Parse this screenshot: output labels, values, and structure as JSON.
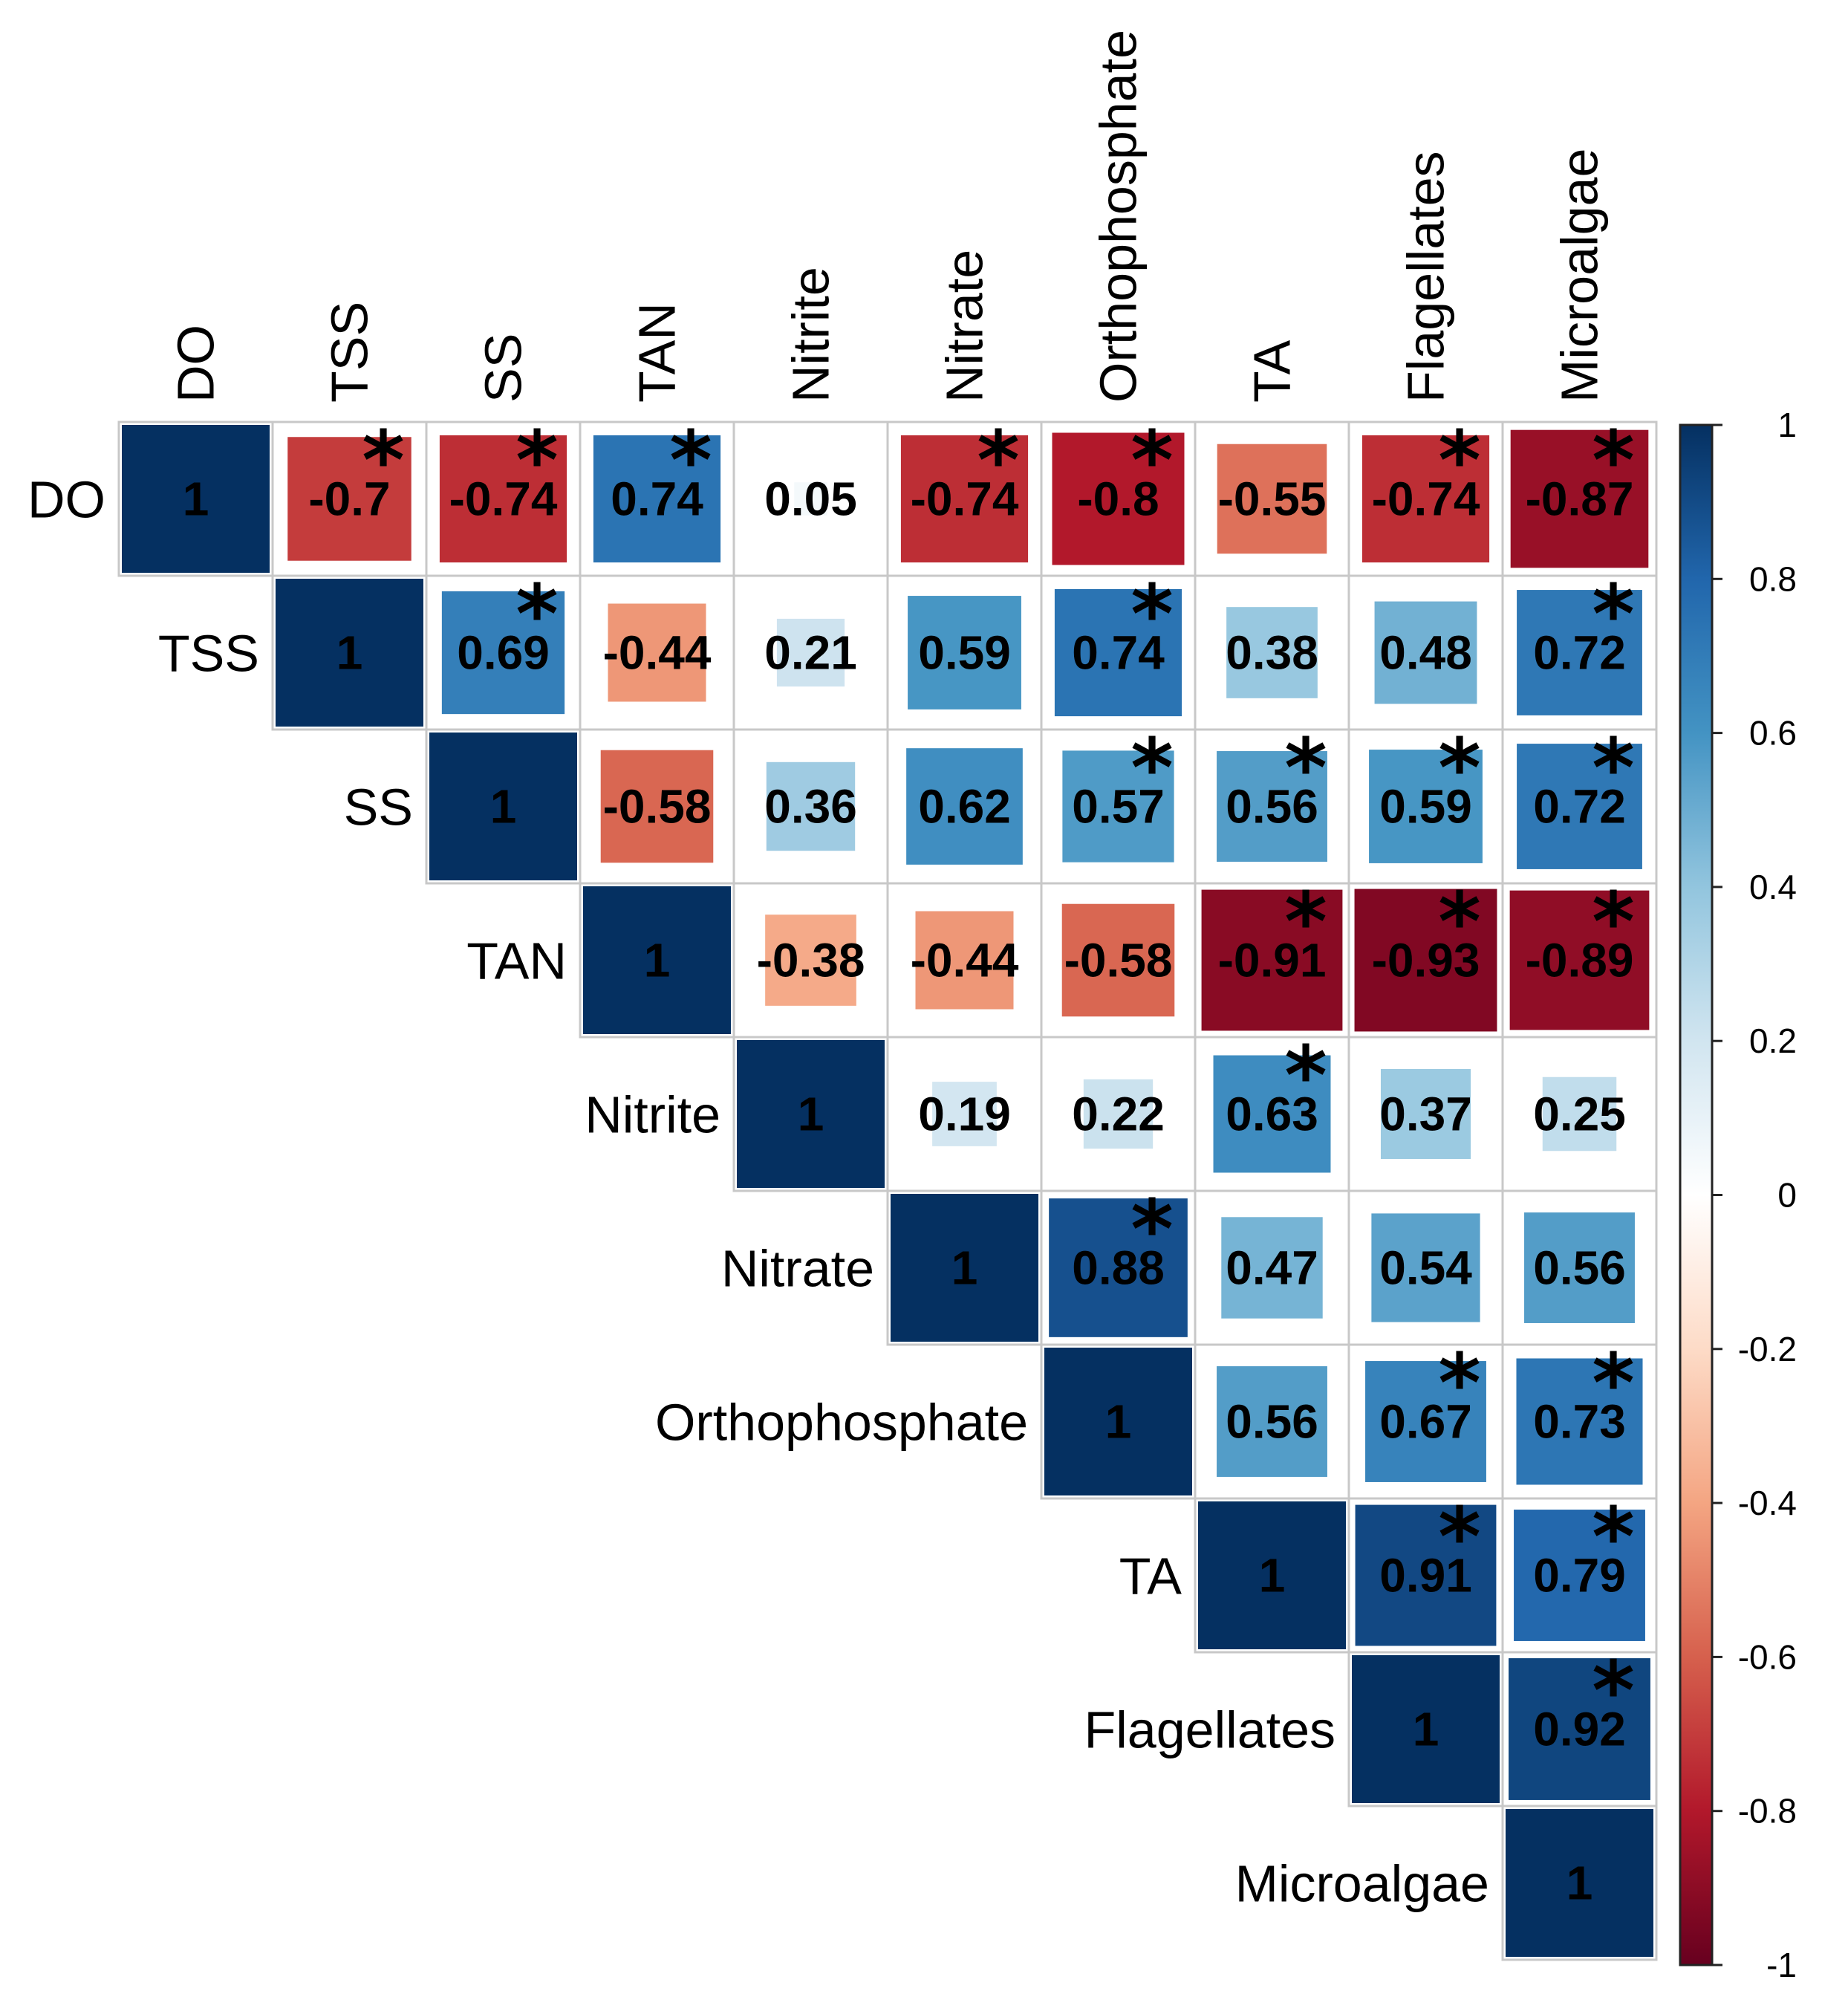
{
  "chart_data": {
    "type": "heatmap",
    "variables": [
      "DO",
      "TSS",
      "SS",
      "TAN",
      "Nitrite",
      "Nitrate",
      "Orthophosphate",
      "TA",
      "Flagellates",
      "Microalgae"
    ],
    "matrix": [
      [
        1,
        -0.7,
        -0.74,
        0.74,
        0.05,
        -0.74,
        -0.8,
        -0.55,
        -0.74,
        -0.87
      ],
      [
        null,
        1,
        0.69,
        -0.44,
        0.21,
        0.59,
        0.74,
        0.38,
        0.48,
        0.72
      ],
      [
        null,
        null,
        1,
        -0.58,
        0.36,
        0.62,
        0.57,
        0.56,
        0.59,
        0.72
      ],
      [
        null,
        null,
        null,
        1,
        -0.38,
        -0.44,
        -0.58,
        -0.91,
        -0.93,
        -0.89
      ],
      [
        null,
        null,
        null,
        null,
        1,
        0.19,
        0.22,
        0.63,
        0.37,
        0.25
      ],
      [
        null,
        null,
        null,
        null,
        null,
        1,
        0.88,
        0.47,
        0.54,
        0.56
      ],
      [
        null,
        null,
        null,
        null,
        null,
        null,
        1,
        0.56,
        0.67,
        0.73
      ],
      [
        null,
        null,
        null,
        null,
        null,
        null,
        null,
        1,
        0.91,
        0.79
      ],
      [
        null,
        null,
        null,
        null,
        null,
        null,
        null,
        null,
        1,
        0.92
      ],
      [
        null,
        null,
        null,
        null,
        null,
        null,
        null,
        null,
        null,
        1
      ]
    ],
    "labels": [
      [
        "1",
        "-0.7",
        "-0.74",
        "0.74",
        "0.05",
        "-0.74",
        "-0.8",
        "-0.55",
        "-0.74",
        "-0.87"
      ],
      [
        null,
        "1",
        "0.69",
        "-0.44",
        "0.21",
        "0.59",
        "0.74",
        "0.38",
        "0.48",
        "0.72"
      ],
      [
        null,
        null,
        "1",
        "-0.58",
        "0.36",
        "0.62",
        "0.57",
        "0.56",
        "0.59",
        "0.72"
      ],
      [
        null,
        null,
        null,
        "1",
        "-0.38",
        "-0.44",
        "-0.58",
        "-0.91",
        "-0.93",
        "-0.89"
      ],
      [
        null,
        null,
        null,
        null,
        "1",
        "0.19",
        "0.22",
        "0.63",
        "0.37",
        "0.25"
      ],
      [
        null,
        null,
        null,
        null,
        null,
        "1",
        "0.88",
        "0.47",
        "0.54",
        "0.56"
      ],
      [
        null,
        null,
        null,
        null,
        null,
        null,
        "1",
        "0.56",
        "0.67",
        "0.73"
      ],
      [
        null,
        null,
        null,
        null,
        null,
        null,
        null,
        "1",
        "0.91",
        "0.79"
      ],
      [
        null,
        null,
        null,
        null,
        null,
        null,
        null,
        null,
        "1",
        "0.92"
      ],
      [
        null,
        null,
        null,
        null,
        null,
        null,
        null,
        null,
        null,
        "1"
      ]
    ],
    "significant": [
      [
        false,
        true,
        true,
        true,
        false,
        true,
        true,
        false,
        true,
        true
      ],
      [
        false,
        false,
        true,
        false,
        false,
        false,
        true,
        false,
        false,
        true
      ],
      [
        false,
        false,
        false,
        false,
        false,
        false,
        true,
        true,
        true,
        true
      ],
      [
        false,
        false,
        false,
        false,
        false,
        false,
        false,
        true,
        true,
        true
      ],
      [
        false,
        false,
        false,
        false,
        false,
        false,
        false,
        true,
        false,
        false
      ],
      [
        false,
        false,
        false,
        false,
        false,
        false,
        true,
        false,
        false,
        false
      ],
      [
        false,
        false,
        false,
        false,
        false,
        false,
        false,
        false,
        true,
        true
      ],
      [
        false,
        false,
        false,
        false,
        false,
        false,
        false,
        false,
        true,
        true
      ],
      [
        false,
        false,
        false,
        false,
        false,
        false,
        false,
        false,
        false,
        true
      ],
      [
        false,
        false,
        false,
        false,
        false,
        false,
        false,
        false,
        false,
        false
      ]
    ],
    "significance_marker": "*",
    "color_scale": {
      "range": [
        -1,
        1
      ],
      "ticks": [
        "1",
        "0.8",
        "0.6",
        "0.4",
        "0.2",
        "0",
        "-0.2",
        "-0.4",
        "-0.6",
        "-0.8",
        "-1"
      ],
      "stops": [
        "#67001F",
        "#B2182B",
        "#D6604D",
        "#F4A582",
        "#FDDBC7",
        "#FFFFFF",
        "#D1E5F0",
        "#92C5DE",
        "#4393C3",
        "#2166AC",
        "#053061"
      ],
      "legend_position": "right"
    },
    "layout": "upper-triangle",
    "cell_shape": "square sized by |r|"
  }
}
